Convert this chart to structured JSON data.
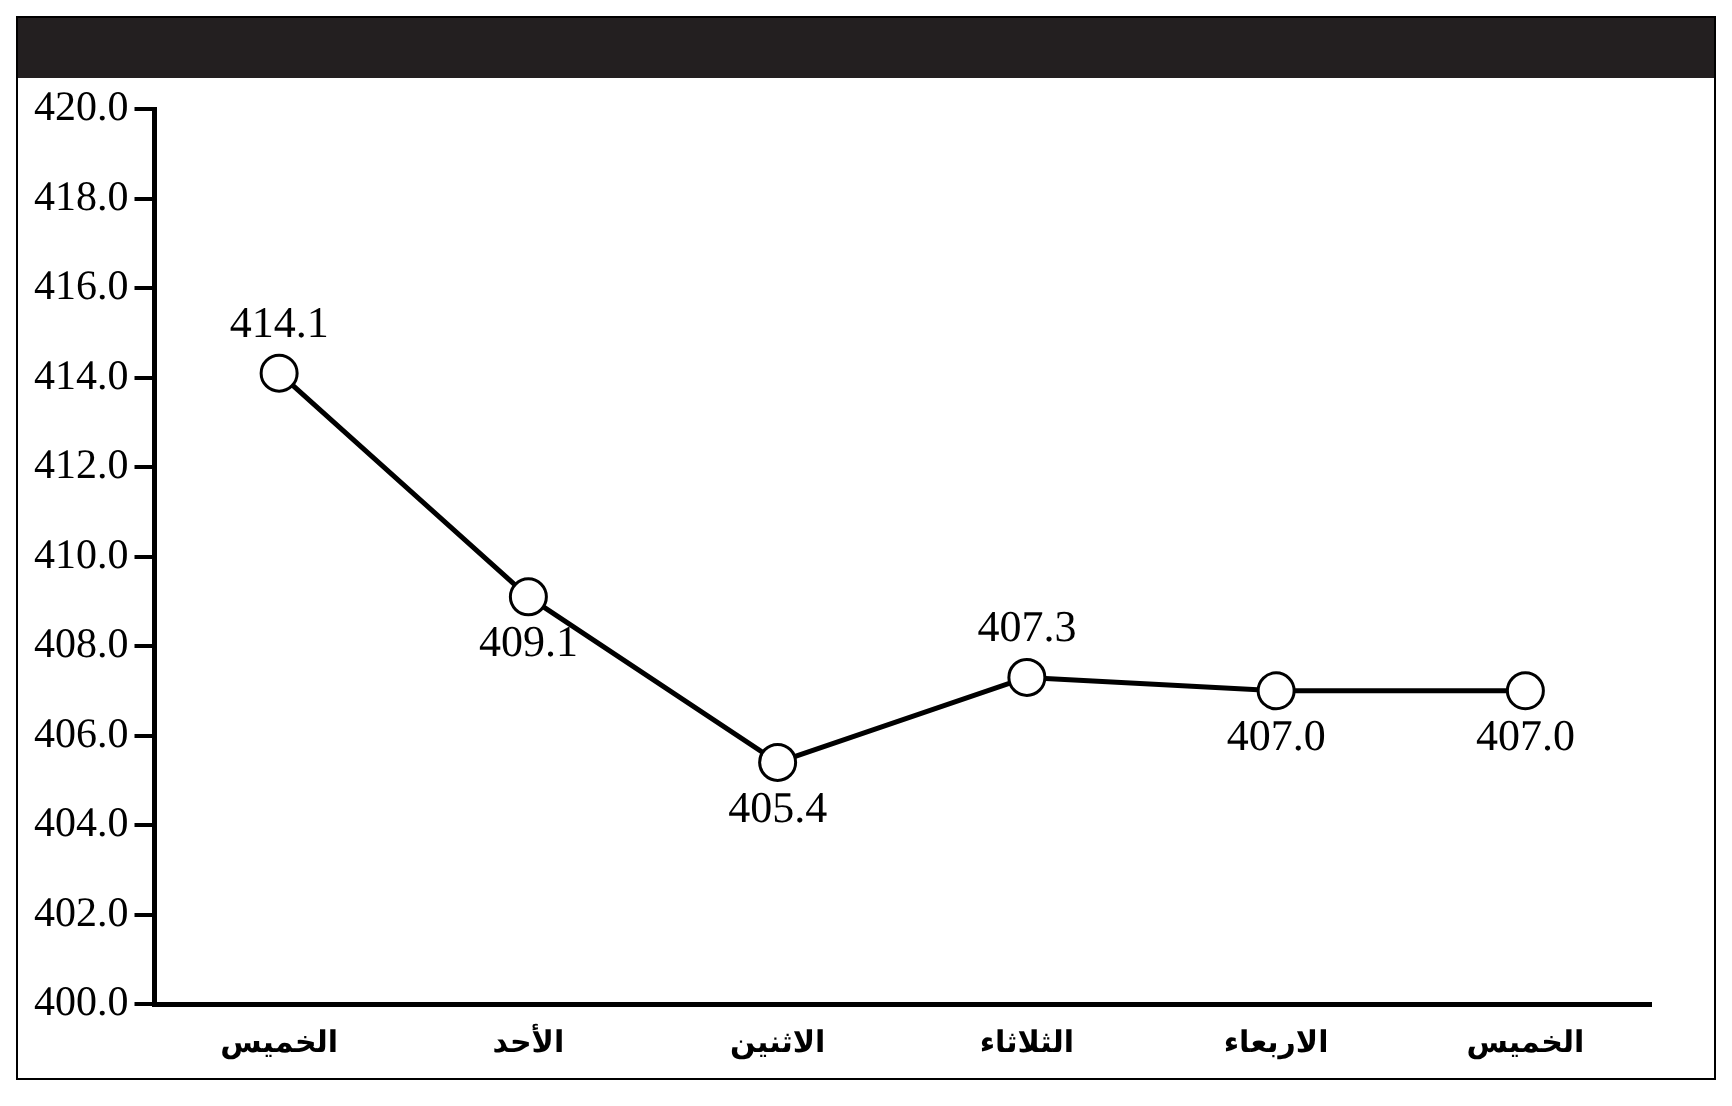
{
  "chart_data": {
    "type": "line",
    "categories": [
      "الخميس",
      "الأحد",
      "الاثنين",
      "الثلاثاء",
      "الاربعاء",
      "الخميس"
    ],
    "series": [
      {
        "color": "#000000",
        "values": [
          414.1,
          409.1,
          405.4,
          407.3,
          407.0,
          407.0
        ],
        "value_labels": [
          "414.1",
          "409.1",
          "405.4",
          "407.3",
          "407.0",
          "407.0"
        ]
      }
    ],
    "ylim": [
      400,
      420
    ],
    "yticks": [
      {
        "value": 400,
        "label": "400.0"
      },
      {
        "value": 402,
        "label": "402.0"
      },
      {
        "value": 404,
        "label": "404.0"
      },
      {
        "value": 406,
        "label": "406.0"
      },
      {
        "value": 408,
        "label": "408.0"
      },
      {
        "value": 410,
        "label": "410.0"
      },
      {
        "value": 412,
        "label": "412.0"
      },
      {
        "value": 414,
        "label": "414.0"
      },
      {
        "value": 416,
        "label": "416.0"
      },
      {
        "value": 418,
        "label": "418.0"
      },
      {
        "value": 420,
        "label": "420.0"
      }
    ],
    "grid": false,
    "legend": false,
    "marker": "circle",
    "line_style": "solid"
  }
}
